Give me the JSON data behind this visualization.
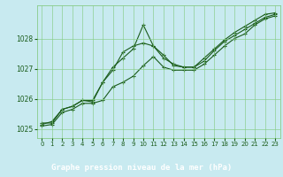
{
  "x": [
    0,
    1,
    2,
    3,
    4,
    5,
    6,
    7,
    8,
    9,
    10,
    11,
    12,
    13,
    14,
    15,
    16,
    17,
    18,
    19,
    20,
    21,
    22,
    23
  ],
  "line1": [
    1025.1,
    1025.15,
    1025.55,
    1025.65,
    1025.85,
    1025.85,
    1025.95,
    1026.4,
    1026.55,
    1026.75,
    1027.1,
    1027.4,
    1027.05,
    1026.95,
    1026.95,
    1026.95,
    1027.15,
    1027.45,
    1027.75,
    1028.0,
    1028.15,
    1028.45,
    1028.65,
    1028.75
  ],
  "line2": [
    1025.15,
    1025.25,
    1025.65,
    1025.75,
    1025.95,
    1025.95,
    1026.55,
    1026.95,
    1027.55,
    1027.75,
    1027.85,
    1027.75,
    1027.45,
    1027.1,
    1027.05,
    1027.05,
    1027.25,
    1027.6,
    1027.9,
    1028.1,
    1028.3,
    1028.5,
    1028.7,
    1028.8
  ],
  "line3": [
    1025.2,
    1025.2,
    1025.65,
    1025.75,
    1025.95,
    1025.9,
    1026.55,
    1027.05,
    1027.35,
    1027.65,
    1028.45,
    1027.75,
    1027.35,
    1027.15,
    1027.05,
    1027.05,
    1027.35,
    1027.65,
    1027.95,
    1028.2,
    1028.4,
    1028.6,
    1028.8,
    1028.85
  ],
  "bg_color": "#c8eaf0",
  "label_bg_color": "#2d6e2d",
  "grid_color": "#88cc88",
  "line_color": "#1a5c1a",
  "xlabel": "Graphe pression niveau de la mer (hPa)",
  "ylim": [
    1024.7,
    1029.1
  ],
  "xlim": [
    -0.5,
    23.5
  ],
  "yticks": [
    1025,
    1026,
    1027,
    1028
  ],
  "xticks": [
    0,
    1,
    2,
    3,
    4,
    5,
    6,
    7,
    8,
    9,
    10,
    11,
    12,
    13,
    14,
    15,
    16,
    17,
    18,
    19,
    20,
    21,
    22,
    23
  ],
  "marker": "+",
  "markersize": 3,
  "linewidth": 0.8,
  "tick_fontsize": 5,
  "xlabel_fontsize": 6.5
}
